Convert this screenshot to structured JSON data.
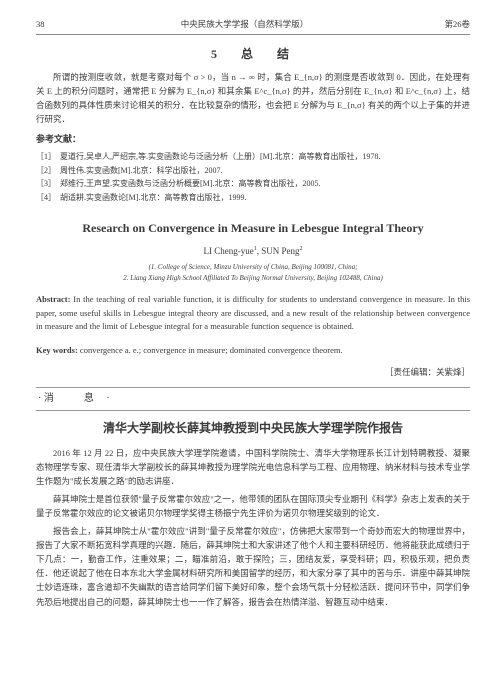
{
  "header": {
    "page_num": "38",
    "journal": "中央民族大学学报（自然科学版）",
    "volume": "第26卷"
  },
  "section5": {
    "title": "5　总　结",
    "para": "所谓的按测度收敛，就是考察对每个 σ > 0，当 n → ∞ 时，集合 E_{n,σ} 的测度是否收敛到 0．因此，在处理有关 E 上的积分问题时，通常把 E 分解为 E_{n,σ} 和其余集 E^c_{n,σ} 的并，然后分别在 E_{n,σ} 和 E^c_{n,σ} 上，结合函数列的具体性质来讨论相关的积分．在比较复杂的情形，也会把 E 分解为与 E_{n,σ} 有关的两个以上子集的并进行研究．"
  },
  "refs": {
    "heading": "参考文献：",
    "items": [
      "［1］　夏道行,吴卓人,严绍宗,等.实变函数论与泛函分析（上册）[M].北京：高等教育出版社，1978.",
      "［2］　周性伟.实变函数[M].北京：科学出版社，2007.",
      "［3］　郑维行,王声望.实变函数与泛函分析概要[M].北京：高等教育出版社，2005.",
      "［4］　胡适耕.实变函数论[M].北京：高等教育出版社，1999."
    ]
  },
  "en": {
    "title": "Research on Convergence in Measure in Lebesgue Integral Theory",
    "authors": "LI Cheng-yue¹, SUN Peng²",
    "affil1": "(1. College of Science, Minzu University of China, Beijing 100081, China;",
    "affil2": "2. Liang Xiang High School Affiliated To Beijing Normal University, Beijing 102488, China)",
    "abstract_label": "Abstract:",
    "abstract": " In the teaching of real variable function, it is difficulty for students to understand convergence in measure. In this paper, some useful skills in Lebesgue integral theory are discussed, and a new result of the relationship between convergence in measure and the limit of Lebesgue integral for a measurable function sequence is obtained.",
    "keywords_label": "Key words:",
    "keywords": " convergence a. e.; convergence in measure; dominated convergence theorem."
  },
  "editor": "［责任编辑：关紫烽］",
  "news": {
    "bar": "消　息",
    "title": "清华大学副校长薛其坤教授到中央民族大学理学院作报告",
    "p1": "2016 年 12 月 22 日，应中央民族大学理学院邀请，中国科学院院士、清华大学物理系长江计划特聘教授、凝聚态物理学专家、现任清华大学副校长的薛其坤教授为理学院光电信息科学与工程、应用物理、纳米材料与技术专业学生作题为\"成长发展之路\"的励志讲座．",
    "p2": "薛其坤院士是首位获领\"量子反常霍尔效应\"之一，他带领的团队在国际顶尖专业期刊《科学》杂志上发表的关于量子反常霍尔效应的论文被诺贝尔物理学奖得主杨振宁先生评价为诺贝尔物理奖级别的论文．",
    "p3": "报告会上，薛其坤院士从\"霍尔效应\"讲到\"量子反常霍尔效应\"，仿佛把大家带到一个奇妙而宏大的物理世界中，报告了大家不断拓宽科学真理的兴趣．随后，薛其坤院士和大家讲述了他个人和主要科研经历．他将能获此成绩归于下几点：一，勤奋工作，注重效果；二，瞄准前沿，敢于探险；三，团结友爱，享受科研；四，积极乐观，把负责任．他还说起了他在日本东北大学金属材料研究所和美国留学的经历，和大家分享了其中的苦与乐．讲座中薛其坤院士妙语连珠，富含道却不失幽默的语言给同学们留下美好印象，整个会场气氛十分轻松活跃．提问环节中，同学们争先恐后地提出自己的问题，薛其坤院士也一一作了解答，报告会在热情洋溢、智趣互动中结束．"
  }
}
